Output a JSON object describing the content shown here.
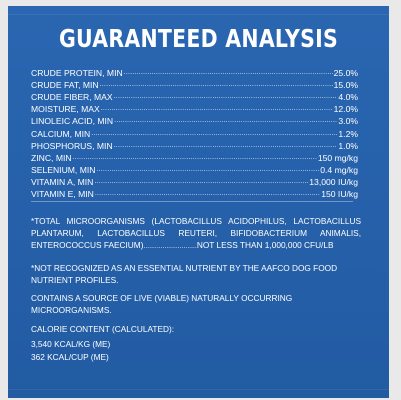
{
  "title": "GUARANTEED ANALYSIS",
  "rows": [
    {
      "label": "CRUDE PROTEIN, MIN",
      "value": "25.0%"
    },
    {
      "label": "CRUDE FAT, MIN",
      "value": "15.0%"
    },
    {
      "label": "CRUDE FIBER, MAX",
      "value": "4.0%"
    },
    {
      "label": "MOISTURE, MAX",
      "value": "12.0%"
    },
    {
      "label": "LINOLEIC ACID, MIN",
      "value": "3.0%"
    },
    {
      "label": "CALCIUM, MIN",
      "value": "1.2%"
    },
    {
      "label": "PHOSPHORUS, MIN",
      "value": "1.0%"
    },
    {
      "label": "ZINC, MIN",
      "value": "150 mg/kg"
    },
    {
      "label": "SELENIUM, MIN",
      "value": "0.4 mg/kg"
    },
    {
      "label": "VITAMIN A, MIN",
      "value": "13,000 IU/kg"
    },
    {
      "label": "VITAMIN E, MIN",
      "value": "150 IU/kg"
    }
  ],
  "microorganisms": {
    "text": "*TOTAL MICROORGANISMS (LACTOBACILLUS ACIDOPHILUS, LACTOBACILLUS PLANTARUM, LACTOBACILLUS REUTERI, BIFIDOBACTERIUM ANIMALIS, ENTEROCOCCUS FAECIUM)",
    "value": "NOT LESS THAN 1,000,000 CFU/LB"
  },
  "aafco_note": "*NOT RECOGNIZED AS AN ESSENTIAL NUTRIENT BY THE AAFCO DOG FOOD NUTRIENT PROFILES.",
  "live_note": "CONTAINS A SOURCE OF LIVE (VIABLE) NATURALLY OCCURRING MICROORGANISMS.",
  "calorie": {
    "heading": "CALORIE CONTENT (CALCULATED):",
    "per_kg": "3,540 KCAL/KG (ME)",
    "per_cup": "362 KCAL/CUP (ME)"
  }
}
